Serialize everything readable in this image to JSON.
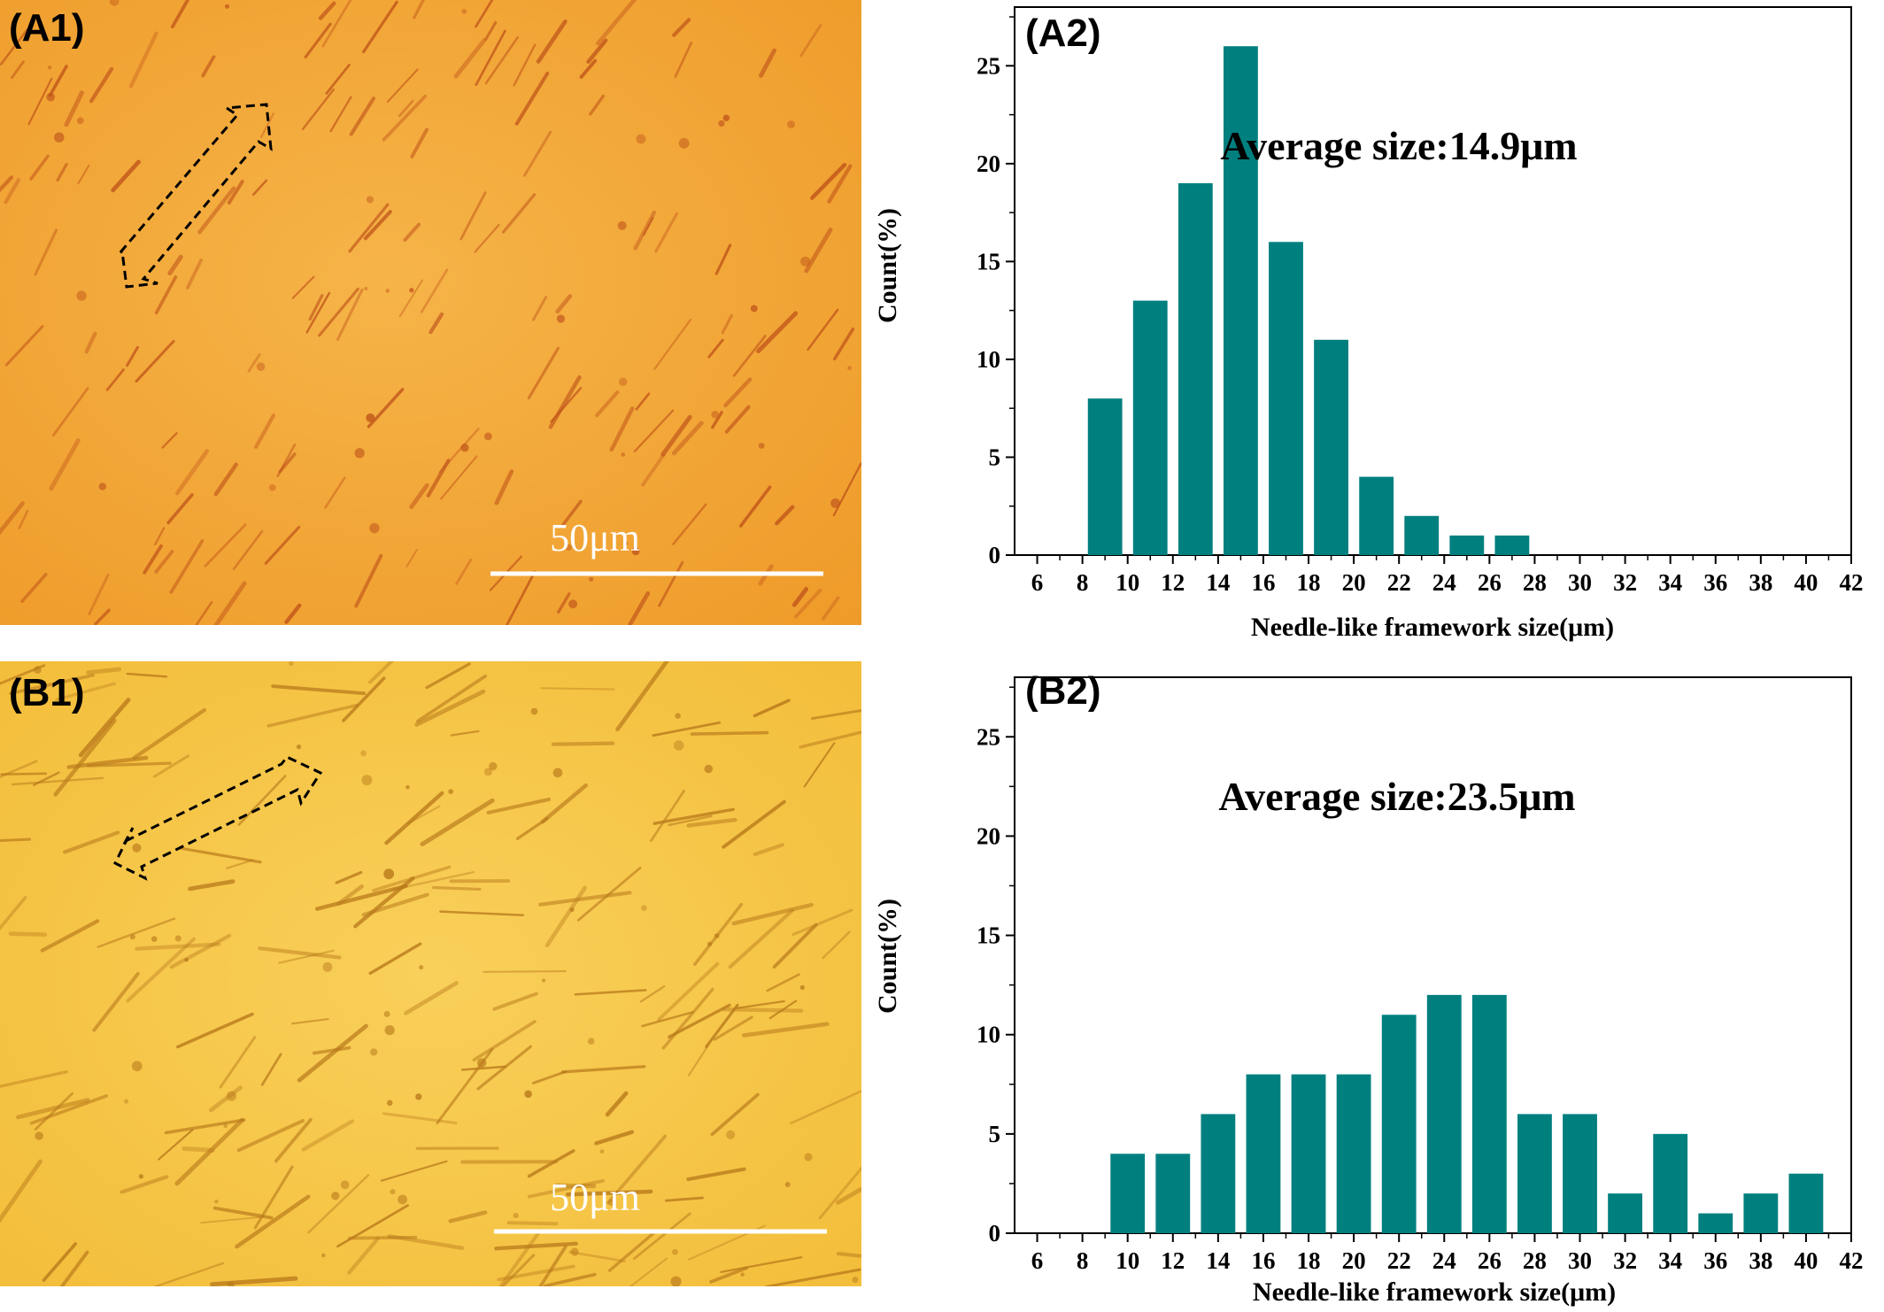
{
  "panels": {
    "a1": {
      "label": "(A1)",
      "scale_bar": "50μm",
      "background": "#f2a132"
    },
    "b1": {
      "label": "(B1)",
      "scale_bar": "50μm",
      "background": "#f5c13f"
    }
  },
  "colors": {
    "bar": "#007f7f"
  },
  "chart_data": [
    {
      "type": "bar",
      "panel_label": "(A2)",
      "annotation": "Average size:14.9μm",
      "xlabel": "Needle-like framework size(μm)",
      "ylabel": "Count(%)",
      "xlim": [
        5,
        42
      ],
      "ylim": [
        0,
        28
      ],
      "xticks": [
        6,
        8,
        10,
        12,
        14,
        16,
        18,
        20,
        22,
        24,
        26,
        28,
        30,
        32,
        34,
        36,
        38,
        40,
        42
      ],
      "yticks": [
        0,
        5,
        10,
        15,
        20,
        25
      ],
      "x": [
        9,
        11,
        13,
        15,
        17,
        19,
        21,
        23,
        25,
        27
      ],
      "values": [
        8,
        13,
        19,
        26,
        16,
        11,
        4,
        2,
        1,
        1
      ]
    },
    {
      "type": "bar",
      "panel_label": "(B2)",
      "annotation": "Average size:23.5μm",
      "xlabel": "Needle-like framework size(μm)",
      "ylabel": "Count(%)",
      "xlim": [
        5,
        42
      ],
      "ylim": [
        0,
        28
      ],
      "xticks": [
        6,
        8,
        10,
        12,
        14,
        16,
        18,
        20,
        22,
        24,
        26,
        28,
        30,
        32,
        34,
        36,
        38,
        40,
        42
      ],
      "yticks": [
        0,
        5,
        10,
        15,
        20,
        25
      ],
      "x": [
        10,
        12,
        14,
        16,
        18,
        20,
        22,
        24,
        26,
        28,
        30,
        32,
        34,
        36,
        38,
        40
      ],
      "values": [
        4,
        4,
        6,
        8,
        8,
        8,
        11,
        12,
        12,
        6,
        6,
        2,
        5,
        1,
        2,
        3
      ]
    }
  ]
}
